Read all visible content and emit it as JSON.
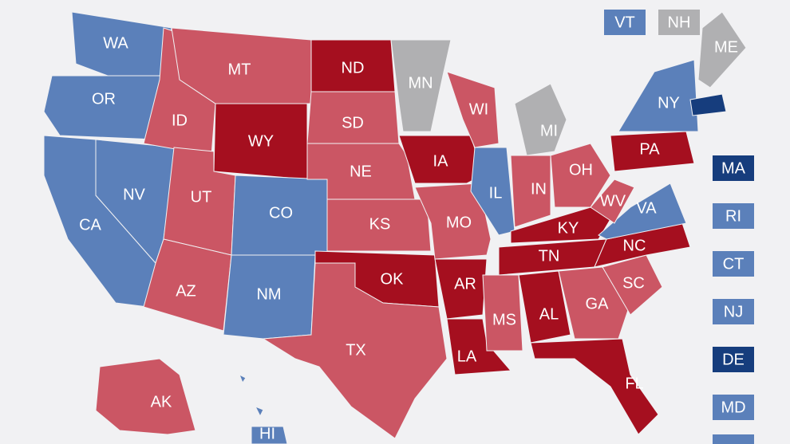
{
  "states": [
    {
      "label": "WA",
      "color": "#5b80ba"
    },
    {
      "label": "OR",
      "color": "#5b80ba"
    },
    {
      "label": "CA",
      "color": "#5b80ba"
    },
    {
      "label": "NV",
      "color": "#5b80ba"
    },
    {
      "label": "ID",
      "color": "#cb5664"
    },
    {
      "label": "MT",
      "color": "#cb5664"
    },
    {
      "label": "WY",
      "color": "#a50f1f"
    },
    {
      "label": "UT",
      "color": "#cb5664"
    },
    {
      "label": "CO",
      "color": "#5b80ba"
    },
    {
      "label": "AZ",
      "color": "#cb5664"
    },
    {
      "label": "NM",
      "color": "#5b80ba"
    },
    {
      "label": "ND",
      "color": "#a50f1f"
    },
    {
      "label": "SD",
      "color": "#cb5664"
    },
    {
      "label": "NE",
      "color": "#cb5664"
    },
    {
      "label": "KS",
      "color": "#cb5664"
    },
    {
      "label": "OK",
      "color": "#a50f1f"
    },
    {
      "label": "TX",
      "color": "#cb5664"
    },
    {
      "label": "MN",
      "color": "#b0b0b2"
    },
    {
      "label": "IA",
      "color": "#a50f1f"
    },
    {
      "label": "MO",
      "color": "#cb5664"
    },
    {
      "label": "AR",
      "color": "#a50f1f"
    },
    {
      "label": "LA",
      "color": "#a50f1f"
    },
    {
      "label": "WI",
      "color": "#cb5664"
    },
    {
      "label": "IL",
      "color": "#5b80ba"
    },
    {
      "label": "MI",
      "color": "#b0b0b2"
    },
    {
      "label": "IN",
      "color": "#cb5664"
    },
    {
      "label": "OH",
      "color": "#cb5664"
    },
    {
      "label": "KY",
      "color": "#a50f1f"
    },
    {
      "label": "TN",
      "color": "#a50f1f"
    },
    {
      "label": "MS",
      "color": "#cb5664"
    },
    {
      "label": "AL",
      "color": "#a50f1f"
    },
    {
      "label": "GA",
      "color": "#cb5664"
    },
    {
      "label": "FL",
      "color": "#a50f1f"
    },
    {
      "label": "SC",
      "color": "#cb5664"
    },
    {
      "label": "NC",
      "color": "#a50f1f"
    },
    {
      "label": "VA",
      "color": "#5b80ba"
    },
    {
      "label": "WV",
      "color": "#cb5664"
    },
    {
      "label": "PA",
      "color": "#a50f1f"
    },
    {
      "label": "NY",
      "color": "#5b80ba"
    },
    {
      "label": "ME",
      "color": "#b0b0b2"
    },
    {
      "label": "AK",
      "color": "#cb5664"
    },
    {
      "label": "HI",
      "color": "#5b80ba"
    }
  ],
  "boxes": [
    {
      "label": "VT",
      "color": "#5b80ba"
    },
    {
      "label": "NH",
      "color": "#b0b0b2"
    },
    {
      "label": "MA",
      "color": "#163d7d"
    },
    {
      "label": "RI",
      "color": "#5b80ba"
    },
    {
      "label": "CT",
      "color": "#5b80ba"
    },
    {
      "label": "NJ",
      "color": "#5b80ba"
    },
    {
      "label": "DE",
      "color": "#163d7d"
    },
    {
      "label": "MD",
      "color": "#5b80ba"
    }
  ]
}
